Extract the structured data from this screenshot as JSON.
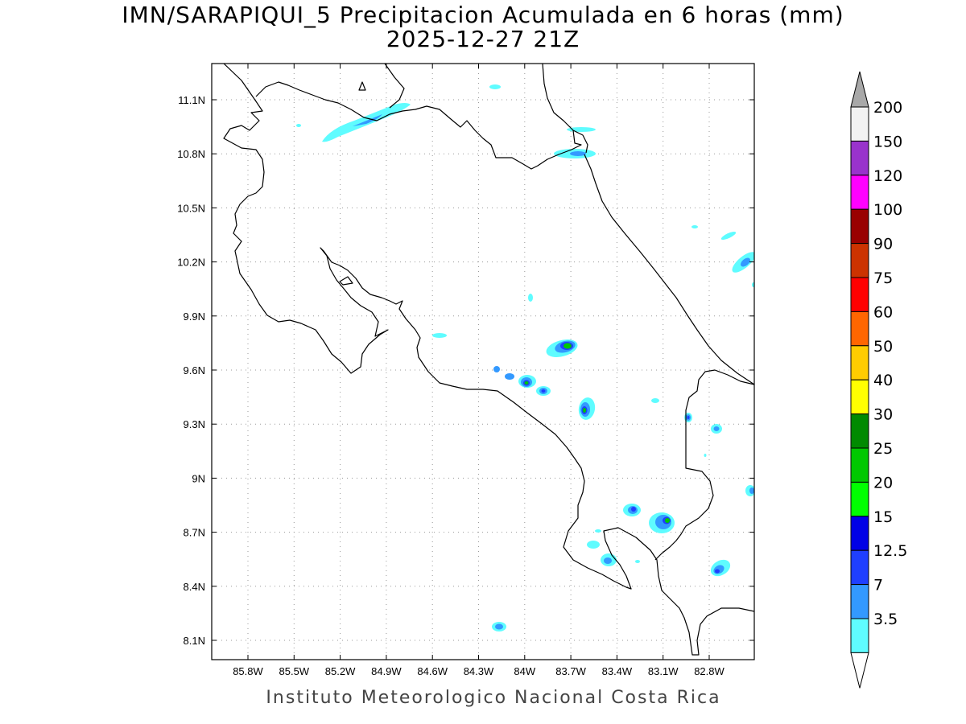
{
  "header": {
    "title_line1": "IMN/SARAPIQUI_5 Precipitacion Acumulada en 6 horas (mm)",
    "title_line2": "2025-12-27 21Z"
  },
  "footer": {
    "credit": "Instituto Meteorologico Nacional Costa Rica"
  },
  "map": {
    "lon_ticks": [
      "85.8W",
      "85.5W",
      "85.2W",
      "84.9W",
      "84.6W",
      "84.3W",
      "84W",
      "83.7W",
      "83.4W",
      "83.1W",
      "82.8W"
    ],
    "lat_ticks": [
      "11.1N",
      "10.8N",
      "10.5N",
      "10.2N",
      "9.9N",
      "9.6N",
      "9.3N",
      "9N",
      "8.7N",
      "8.4N",
      "8.1N"
    ],
    "grid": "dotted",
    "outline_color": "#000000"
  },
  "colorbar": {
    "levels": [
      "3.5",
      "7",
      "12.5",
      "15",
      "20",
      "25",
      "30",
      "40",
      "50",
      "60",
      "75",
      "90",
      "100",
      "120",
      "150",
      "200"
    ],
    "colors": [
      "#5ffcff",
      "#3399ff",
      "#1f3fff",
      "#0000e6",
      "#00ff00",
      "#00c800",
      "#008a00",
      "#ffff00",
      "#ffcc00",
      "#ff6600",
      "#ff0000",
      "#cc3300",
      "#990000",
      "#ff00ff",
      "#9933cc",
      "#f2f2f2"
    ],
    "top_arrow_color": "#a8a8a8",
    "bottom_arrow_color": "#ffffff"
  }
}
